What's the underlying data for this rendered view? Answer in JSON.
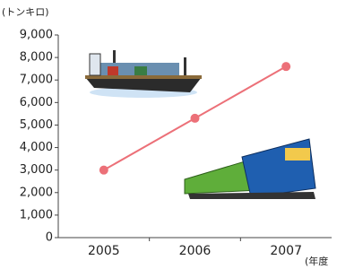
{
  "chart_data": {
    "type": "line",
    "y_label": "(トンキロ)",
    "x_label": "(年度",
    "categories": [
      "2005",
      "2006",
      "2007"
    ],
    "values": [
      3000,
      5300,
      7600
    ],
    "color": "#ec7078",
    "ylim": [
      0,
      9000
    ],
    "yticks": [
      0,
      {
        "value": 1000,
        "label": "1,000"
      },
      {
        "value": 2000,
        "label": "2,000"
      },
      {
        "value": 3000,
        "label": "3,000"
      },
      {
        "value": 4000,
        "label": "4,000"
      },
      {
        "value": 5000,
        "label": "5,000"
      },
      {
        "value": 6000,
        "label": "6,000"
      },
      {
        "value": 7000,
        "label": "7,000"
      },
      {
        "value": 8000,
        "label": "8,000"
      },
      {
        "value": 9000,
        "label": "9,000"
      }
    ],
    "grid": false
  }
}
